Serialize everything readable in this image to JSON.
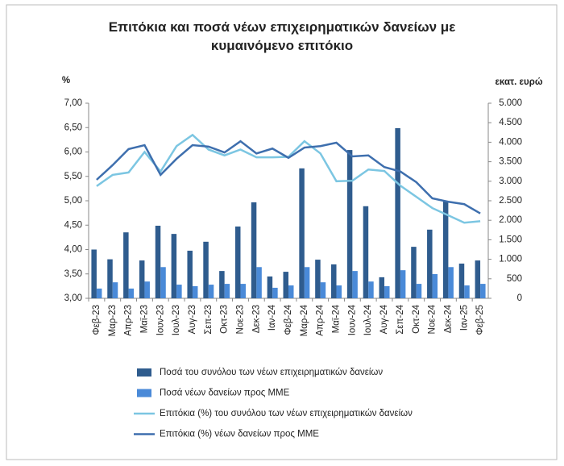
{
  "chart_data": {
    "type": "bar",
    "title": "Επιτόκια και ποσά νέων επιχειρηματικών δανείων με κυμαινόμενο επιτόκιο",
    "y_label": "%",
    "y2_label": "εκατ. ευρώ",
    "categories": [
      "Φεβ-23",
      "Μαρ-23",
      "Απρ-23",
      "Μαϊ-23",
      "Ιουν-23",
      "Ιουλ-23",
      "Αυγ-23",
      "Σεπ-23",
      "Οκτ-23",
      "Νοε-23",
      "Δεκ-23",
      "Ιαν-24",
      "Φεβ-24",
      "Μαρ-24",
      "Απρ-24",
      "Μαϊ-24",
      "Ιουν-24",
      "Ιουλ-24",
      "Αυγ-24",
      "Σεπ-24",
      "Οκτ-24",
      "Νοε-24",
      "Δεκ-24",
      "Ιαν-25",
      "Φεβ-25"
    ],
    "series": [
      {
        "name": "Ποσά του συνόλου των νέων επιχειρηματικών δανείων",
        "type": "bar",
        "axis": "y2",
        "color": "#2f5c8e",
        "values": [
          1250,
          1000,
          1690,
          970,
          1860,
          1650,
          1220,
          1450,
          700,
          1840,
          2460,
          560,
          680,
          3330,
          990,
          870,
          3800,
          2360,
          540,
          4360,
          1320,
          1760,
          2480,
          890,
          970
        ]
      },
      {
        "name": "Ποσά νέων δανείων προς ΜΜΕ",
        "type": "bar",
        "axis": "y2",
        "color": "#4a8ad8",
        "values": [
          250,
          410,
          250,
          430,
          800,
          350,
          310,
          350,
          370,
          370,
          800,
          270,
          330,
          800,
          410,
          330,
          700,
          430,
          310,
          720,
          370,
          620,
          800,
          330,
          370
        ]
      },
      {
        "name": "Επιτόκια (%) του συνόλου των νέων επιχειρηματικών δανείων",
        "type": "line",
        "color": "#7cc6e2",
        "values": [
          5.3,
          5.53,
          5.58,
          6.0,
          5.6,
          6.12,
          6.35,
          6.05,
          5.93,
          6.05,
          5.89,
          5.89,
          5.9,
          6.22,
          5.97,
          5.4,
          5.41,
          5.64,
          5.61,
          5.31,
          5.08,
          4.85,
          4.7,
          4.55,
          4.58
        ]
      },
      {
        "name": "Επιτόκια (%) νέων δανείων προς ΜΜΕ",
        "type": "line",
        "color": "#3e6fae",
        "values": [
          5.43,
          5.73,
          6.06,
          6.14,
          5.53,
          5.86,
          6.14,
          6.11,
          5.99,
          6.22,
          5.97,
          6.07,
          5.88,
          6.09,
          6.12,
          6.19,
          5.91,
          5.93,
          5.69,
          5.6,
          5.38,
          5.05,
          4.98,
          4.93,
          4.74
        ]
      }
    ],
    "ylim": [
      3,
      7
    ],
    "yticks": [
      {
        "value": 3,
        "label": "3,00"
      },
      {
        "value": 3.5,
        "label": "3,50"
      },
      {
        "value": 4,
        "label": "4,00"
      },
      {
        "value": 4.5,
        "label": "4,50"
      },
      {
        "value": 5,
        "label": "5,00"
      },
      {
        "value": 5.5,
        "label": "5,50"
      },
      {
        "value": 6,
        "label": "6,00"
      },
      {
        "value": 6.5,
        "label": "6,50"
      },
      {
        "value": 7,
        "label": "7,00"
      }
    ],
    "y2lim": [
      0,
      5000
    ],
    "y2ticks": [
      0,
      500,
      {
        "value": 1000,
        "label": "1.000"
      },
      {
        "value": 1500,
        "label": "1.500"
      },
      {
        "value": 2000,
        "label": "2.000"
      },
      {
        "value": 2500,
        "label": "2.500"
      },
      {
        "value": 3000,
        "label": "3.000"
      },
      {
        "value": 3500,
        "label": "3.500"
      },
      {
        "value": 4000,
        "label": "4.000"
      },
      {
        "value": 4500,
        "label": "4.500"
      },
      {
        "value": 5000,
        "label": "5.000"
      }
    ],
    "grid": false
  }
}
